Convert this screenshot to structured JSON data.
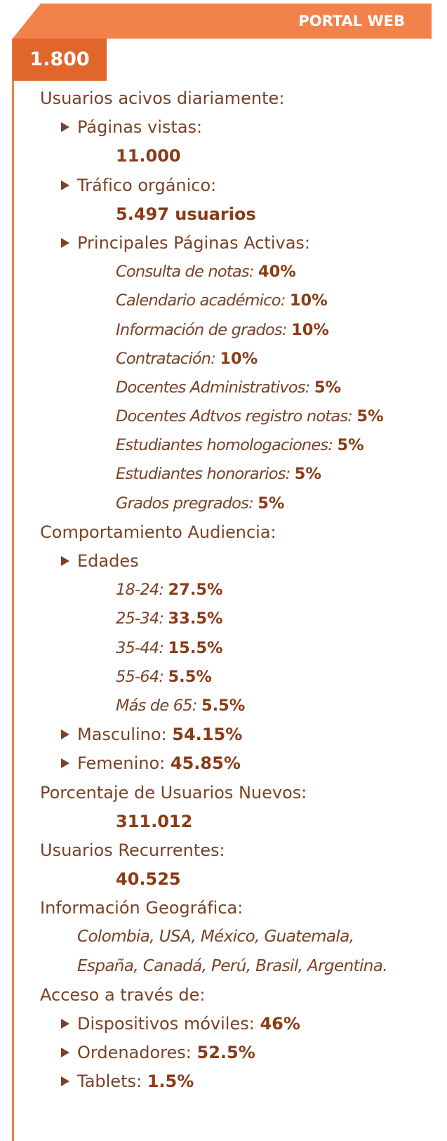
{
  "header": {
    "title": "PORTAL WEB",
    "highlight": "1.800"
  },
  "sections": [
    {
      "heading": "Usuarios acivos diariamente:",
      "items": [
        {
          "label": "Páginas vistas:",
          "value": "11.000"
        },
        {
          "label": "Tráfico orgánico:",
          "value": "5.497 usuarios"
        },
        {
          "label": "Principales Páginas Activas:",
          "entries": [
            {
              "label": "Consulta de notas:",
              "value": "40%"
            },
            {
              "label": "Calendario académico:",
              "value": "10%"
            },
            {
              "label": "Información de grados:",
              "value": "10%"
            },
            {
              "label": "Contratación:",
              "value": "10%"
            },
            {
              "label": "Docentes Administrativos:",
              "value": "5%"
            },
            {
              "label": "Docentes Adtvos registro notas:",
              "value": "5%"
            },
            {
              "label": "Estudiantes homologaciones:",
              "value": "5%"
            },
            {
              "label": "Estudiantes honorarios:",
              "value": "5%"
            },
            {
              "label": "Grados pregrados:",
              "value": "5%"
            }
          ]
        }
      ]
    },
    {
      "heading": "Comportamiento Audiencia:",
      "items": [
        {
          "label": "Edades",
          "entries": [
            {
              "label": "18-24:",
              "value": "27.5%"
            },
            {
              "label": "25-34:",
              "value": "33.5%"
            },
            {
              "label": "35-44:",
              "value": "15.5%"
            },
            {
              "label": "55-64:",
              "value": "5.5%"
            },
            {
              "label": "Más de 65:",
              "value": "5.5%"
            }
          ]
        },
        {
          "label": "Masculino:",
          "value": "54.15%"
        },
        {
          "label": "Femenino:",
          "value": "45.85%"
        }
      ]
    },
    {
      "heading": "Porcentaje de Usuarios Nuevos:",
      "value": "311.012"
    },
    {
      "heading": "Usuarios Recurrentes:",
      "value": "40.525"
    },
    {
      "heading": "Información Geográfica:",
      "lines": [
        "Colombia, USA, México, Guatemala,",
        "España, Canadá, Perú, Brasil, Argentina."
      ]
    },
    {
      "heading": "Acceso a través de:",
      "items": [
        {
          "label": "Dispositivos móviles:",
          "value": "46%"
        },
        {
          "label": "Ordenadores:",
          "value": "52.5%"
        },
        {
          "label": "Tablets:",
          "value": "1.5%"
        }
      ]
    }
  ]
}
